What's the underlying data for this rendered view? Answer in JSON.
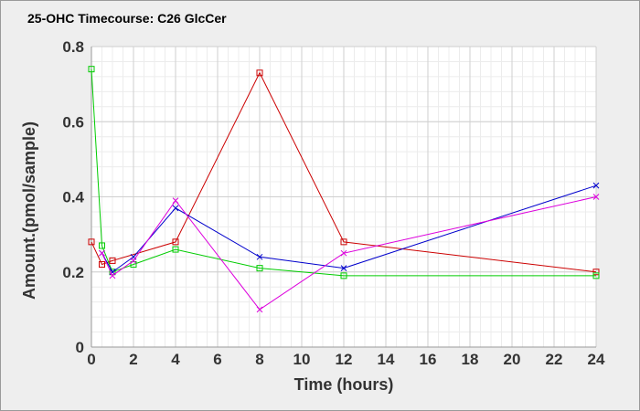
{
  "chart_data": {
    "type": "line",
    "title": "25-OHC Timecourse: C26 GlcCer",
    "xlabel": "Time (hours)",
    "ylabel": "Amount.(pmol/sample)",
    "xlim": [
      0,
      24
    ],
    "ylim": [
      0,
      0.8
    ],
    "x_ticks": [
      0,
      2,
      4,
      6,
      8,
      10,
      12,
      14,
      16,
      18,
      20,
      22,
      24
    ],
    "y_ticks": [
      0,
      0.2,
      0.4,
      0.6,
      0.8
    ],
    "y_tick_labels": [
      "0",
      "0.2",
      "0.4",
      "0.6",
      "0.8"
    ],
    "grid": true,
    "legend": "none",
    "series": [
      {
        "color": "#cc0000",
        "marker": "square",
        "x": [
          0,
          0.5,
          1,
          4,
          8,
          12,
          24
        ],
        "y": [
          0.28,
          0.22,
          0.23,
          0.28,
          0.73,
          0.28,
          0.2
        ]
      },
      {
        "color": "#00cc00",
        "marker": "square",
        "x": [
          0,
          0.5,
          1,
          2,
          4,
          8,
          12,
          24
        ],
        "y": [
          0.74,
          0.27,
          0.2,
          0.22,
          0.26,
          0.21,
          0.19,
          0.19
        ]
      },
      {
        "color": "#0000cc",
        "marker": "x",
        "x": [
          0.5,
          1,
          2,
          4,
          8,
          12,
          24
        ],
        "y": [
          0.25,
          0.2,
          0.24,
          0.37,
          0.24,
          0.21,
          0.43
        ]
      },
      {
        "color": "#dd00dd",
        "marker": "x",
        "x": [
          0.5,
          1,
          2,
          4,
          8,
          12,
          24
        ],
        "y": [
          0.25,
          0.19,
          0.23,
          0.39,
          0.1,
          0.25,
          0.4
        ]
      }
    ]
  }
}
